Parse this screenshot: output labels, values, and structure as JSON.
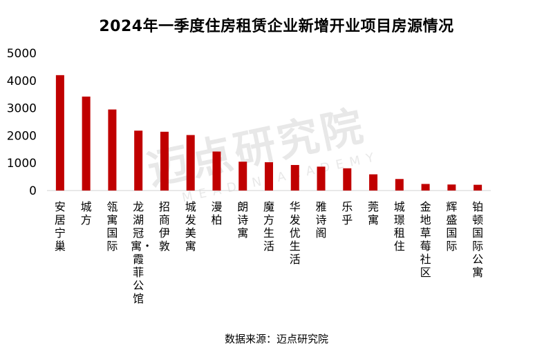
{
  "chart_data": {
    "type": "bar",
    "title": "2024年一季度住房租赁企业新增开业项目房源情况",
    "categories": [
      "安居宁巢",
      "城方",
      "瓴寓国际",
      "龙湖冠寓・霞菲公馆",
      "招商伊敦",
      "城发美寓",
      "漫柏",
      "朗诗寓",
      "魔方生活",
      "华发优生活",
      "雅诗阁",
      "乐乎",
      "莞寓",
      "城璟租住",
      "金地草莓社区",
      "辉盛国际",
      "铂顿国际公寓"
    ],
    "values": [
      4200,
      3420,
      2950,
      2180,
      2140,
      2020,
      1420,
      1050,
      1030,
      930,
      870,
      810,
      590,
      420,
      240,
      220,
      210
    ],
    "yticks": [
      0,
      1000,
      2000,
      3000,
      4000,
      5000
    ],
    "ylim": [
      0,
      5000
    ],
    "xlabel": "",
    "ylabel": "",
    "bar_color": "#c00000",
    "grid": false
  },
  "source": "数据来源：迈点研究院",
  "watermark": {
    "text": "迈点研究院",
    "subtext": "MEADIN ACADEMY"
  }
}
